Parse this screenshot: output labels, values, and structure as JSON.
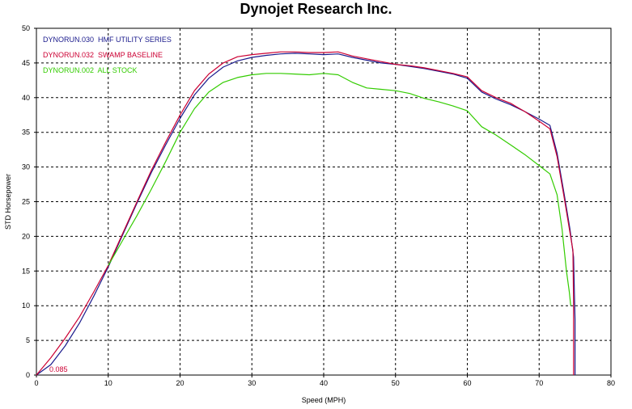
{
  "chart_data": {
    "type": "line",
    "title": "Dynojet Research Inc.",
    "xlabel": "Speed (MPH)",
    "ylabel": "STD Horsepower",
    "xlim": [
      0,
      80
    ],
    "ylim": [
      0,
      50
    ],
    "xticks": [
      "0",
      "10",
      "20",
      "30",
      "40",
      "50",
      "60",
      "70",
      "80"
    ],
    "yticks": [
      "0",
      "5",
      "10",
      "15",
      "20",
      "25",
      "30",
      "35",
      "40",
      "45",
      "50"
    ],
    "grid": true,
    "legend_position": "top-left",
    "annotation": "0.085",
    "annotation_color": "#cc0033",
    "series": [
      {
        "name": "DYNORUN.030  HMF UTILITY SERIES",
        "color": "#1a1a8c",
        "points": [
          [
            0,
            0
          ],
          [
            2,
            1.5
          ],
          [
            4,
            4.2
          ],
          [
            6,
            7.5
          ],
          [
            8,
            11.4
          ],
          [
            10,
            15.6
          ],
          [
            12,
            20.2
          ],
          [
            14,
            24.8
          ],
          [
            16,
            29.2
          ],
          [
            18,
            33.2
          ],
          [
            20,
            37.0
          ],
          [
            22,
            40.4
          ],
          [
            24,
            42.8
          ],
          [
            26,
            44.4
          ],
          [
            28,
            45.3
          ],
          [
            30,
            45.8
          ],
          [
            32,
            46.1
          ],
          [
            34,
            46.3
          ],
          [
            36,
            46.4
          ],
          [
            38,
            46.3
          ],
          [
            40,
            46.2
          ],
          [
            42,
            46.3
          ],
          [
            44,
            45.8
          ],
          [
            46,
            45.4
          ],
          [
            48,
            45.0
          ],
          [
            50,
            44.8
          ],
          [
            52,
            44.5
          ],
          [
            54,
            44.2
          ],
          [
            56,
            43.8
          ],
          [
            58,
            43.4
          ],
          [
            60,
            42.8
          ],
          [
            62,
            40.8
          ],
          [
            64,
            39.8
          ],
          [
            66,
            39.0
          ],
          [
            68,
            38.0
          ],
          [
            70,
            36.9
          ],
          [
            71.5,
            36.0
          ],
          [
            72.5,
            32.0
          ],
          [
            73.5,
            26.0
          ],
          [
            74.3,
            21.0
          ],
          [
            74.8,
            17.0
          ],
          [
            75.0,
            8.0
          ],
          [
            75.0,
            0
          ]
        ]
      },
      {
        "name": "DYNORUN.032  SWAMP BASELINE",
        "color": "#cc0033",
        "points": [
          [
            0,
            0
          ],
          [
            2,
            2.5
          ],
          [
            4,
            5.3
          ],
          [
            6,
            8.4
          ],
          [
            8,
            12.0
          ],
          [
            10,
            15.8
          ],
          [
            12,
            20.4
          ],
          [
            14,
            25.0
          ],
          [
            16,
            29.5
          ],
          [
            18,
            33.6
          ],
          [
            20,
            37.5
          ],
          [
            22,
            41.0
          ],
          [
            24,
            43.4
          ],
          [
            26,
            45.0
          ],
          [
            28,
            45.9
          ],
          [
            30,
            46.2
          ],
          [
            32,
            46.4
          ],
          [
            34,
            46.6
          ],
          [
            36,
            46.6
          ],
          [
            38,
            46.5
          ],
          [
            40,
            46.5
          ],
          [
            42,
            46.6
          ],
          [
            44,
            46.0
          ],
          [
            46,
            45.6
          ],
          [
            48,
            45.2
          ],
          [
            50,
            44.8
          ],
          [
            52,
            44.6
          ],
          [
            54,
            44.3
          ],
          [
            56,
            43.9
          ],
          [
            58,
            43.5
          ],
          [
            60,
            43.0
          ],
          [
            62,
            41.0
          ],
          [
            64,
            40.0
          ],
          [
            66,
            39.2
          ],
          [
            68,
            38.0
          ],
          [
            70,
            36.6
          ],
          [
            71.5,
            35.5
          ],
          [
            72.5,
            31.5
          ],
          [
            73.5,
            25.5
          ],
          [
            74.3,
            20.5
          ],
          [
            74.7,
            18.0
          ],
          [
            74.8,
            10.0
          ],
          [
            74.8,
            0
          ]
        ]
      },
      {
        "name": "DYNORUN.002  ALL STOCK",
        "color": "#33cc00",
        "points": [
          [
            10,
            15.8
          ],
          [
            12,
            19.4
          ],
          [
            14,
            23.0
          ],
          [
            16,
            26.8
          ],
          [
            18,
            30.8
          ],
          [
            20,
            35.0
          ],
          [
            22,
            38.4
          ],
          [
            24,
            40.8
          ],
          [
            26,
            42.2
          ],
          [
            28,
            42.9
          ],
          [
            30,
            43.3
          ],
          [
            32,
            43.5
          ],
          [
            34,
            43.5
          ],
          [
            36,
            43.4
          ],
          [
            38,
            43.3
          ],
          [
            40,
            43.5
          ],
          [
            42,
            43.3
          ],
          [
            44,
            42.2
          ],
          [
            46,
            41.4
          ],
          [
            48,
            41.2
          ],
          [
            50,
            41.0
          ],
          [
            52,
            40.6
          ],
          [
            54,
            39.9
          ],
          [
            56,
            39.4
          ],
          [
            58,
            38.8
          ],
          [
            60,
            38.1
          ],
          [
            62,
            35.8
          ],
          [
            64,
            34.6
          ],
          [
            66,
            33.2
          ],
          [
            68,
            31.8
          ],
          [
            70,
            30.2
          ],
          [
            71.5,
            29.0
          ],
          [
            72.5,
            26.0
          ],
          [
            73.2,
            21.0
          ],
          [
            73.8,
            15.0
          ],
          [
            74.2,
            12.0
          ],
          [
            74.4,
            10.0
          ]
        ]
      }
    ]
  }
}
